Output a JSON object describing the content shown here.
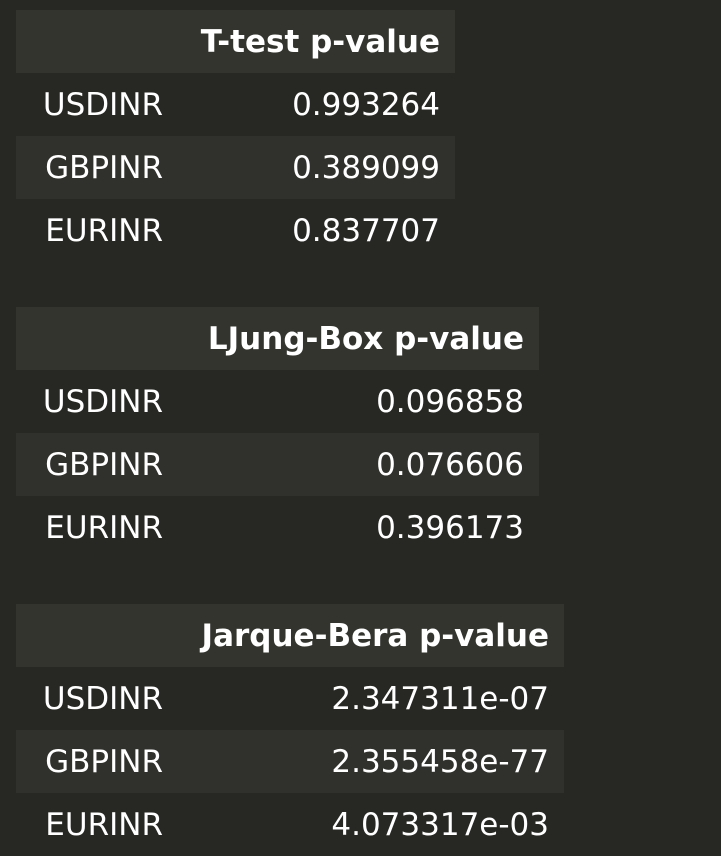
{
  "tables": [
    {
      "column": "T-test p-value",
      "rows": [
        {
          "index": "USDINR",
          "value": "0.993264"
        },
        {
          "index": "GBPINR",
          "value": "0.389099"
        },
        {
          "index": "EURINR",
          "value": "0.837707"
        }
      ]
    },
    {
      "column": "LJung-Box p-value",
      "rows": [
        {
          "index": "USDINR",
          "value": "0.096858"
        },
        {
          "index": "GBPINR",
          "value": "0.076606"
        },
        {
          "index": "EURINR",
          "value": "0.396173"
        }
      ]
    },
    {
      "column": "Jarque-Bera p-value",
      "rows": [
        {
          "index": "USDINR",
          "value": "2.347311e-07"
        },
        {
          "index": "GBPINR",
          "value": "2.355458e-77"
        },
        {
          "index": "EURINR",
          "value": "4.073317e-03"
        }
      ]
    }
  ]
}
